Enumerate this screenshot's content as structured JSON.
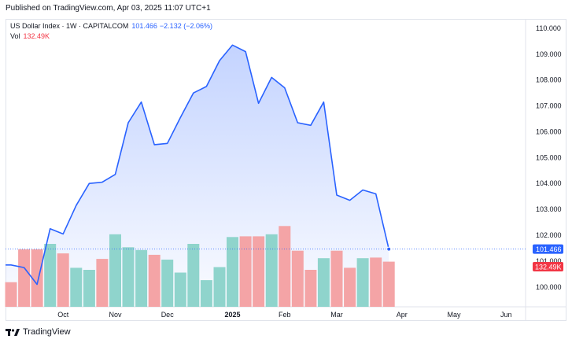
{
  "header": {
    "published": "Published on TradingView.com, Apr 03, 2025 11:07 UTC+1"
  },
  "legend": {
    "symbol": "US Dollar Index · 1W · CAPITALCOM",
    "last": "101.466",
    "change": "−2.132 (−2.06%)",
    "volume_label": "Vol",
    "volume_value": "132.49K"
  },
  "footer": {
    "brand": "TradingView"
  },
  "colors": {
    "line": "#2962ff",
    "area_top": "rgba(41,98,255,0.28)",
    "area_bottom": "rgba(41,98,255,0.02)",
    "vol_up": "#8fd4cc",
    "vol_down": "#f4a4a6",
    "last_badge": "#2962ff",
    "vol_badge": "#f23645"
  },
  "chart_data": {
    "type": "area",
    "title": "US Dollar Index · 1W · CAPITALCOM",
    "y_axis_side": "right",
    "ylim": [
      99.1,
      110.4
    ],
    "y_ticks": [
      "110.000",
      "109.000",
      "108.000",
      "107.000",
      "106.000",
      "105.000",
      "104.000",
      "103.000",
      "102.000",
      "101.000",
      "100.000"
    ],
    "x_tick_labels": [
      {
        "week": 4,
        "label": "Oct",
        "bold": false
      },
      {
        "week": 8,
        "label": "Nov",
        "bold": false
      },
      {
        "week": 12,
        "label": "Dec",
        "bold": false
      },
      {
        "week": 17,
        "label": "2025",
        "bold": true
      },
      {
        "week": 21,
        "label": "Feb",
        "bold": false
      },
      {
        "week": 25,
        "label": "Mar",
        "bold": false
      },
      {
        "week": 30,
        "label": "Apr",
        "bold": false
      },
      {
        "week": 34,
        "label": "May",
        "bold": false
      },
      {
        "week": 38,
        "label": "Jun",
        "bold": false
      }
    ],
    "series": [
      {
        "name": "US Dollar Index",
        "values": [
          100.85,
          100.75,
          100.1,
          102.25,
          102.05,
          103.15,
          104.0,
          104.05,
          104.35,
          106.35,
          107.15,
          105.5,
          105.55,
          106.55,
          107.5,
          107.75,
          108.75,
          109.35,
          109.1,
          107.1,
          108.1,
          107.7,
          106.35,
          106.25,
          107.15,
          103.55,
          103.35,
          103.75,
          103.6,
          101.466
        ]
      }
    ],
    "volume": {
      "name": "Vol",
      "values": [
        0.36,
        0.84,
        0.84,
        0.92,
        0.78,
        0.57,
        0.54,
        0.7,
        1.06,
        0.87,
        0.83,
        0.76,
        0.69,
        0.5,
        0.92,
        0.39,
        0.58,
        1.02,
        1.03,
        1.03,
        1.06,
        1.18,
        0.82,
        0.54,
        0.71,
        0.82,
        0.57,
        0.71,
        0.72,
        0.66
      ],
      "direction": [
        "down",
        "down",
        "down",
        "up",
        "down",
        "up",
        "up",
        "down",
        "up",
        "up",
        "up",
        "down",
        "up",
        "up",
        "up",
        "up",
        "up",
        "up",
        "down",
        "down",
        "up",
        "down",
        "down",
        "down",
        "up",
        "down",
        "down",
        "up",
        "down",
        "down"
      ],
      "last_value": "132.49K"
    },
    "last_price_label": "101.466",
    "grid": false
  }
}
